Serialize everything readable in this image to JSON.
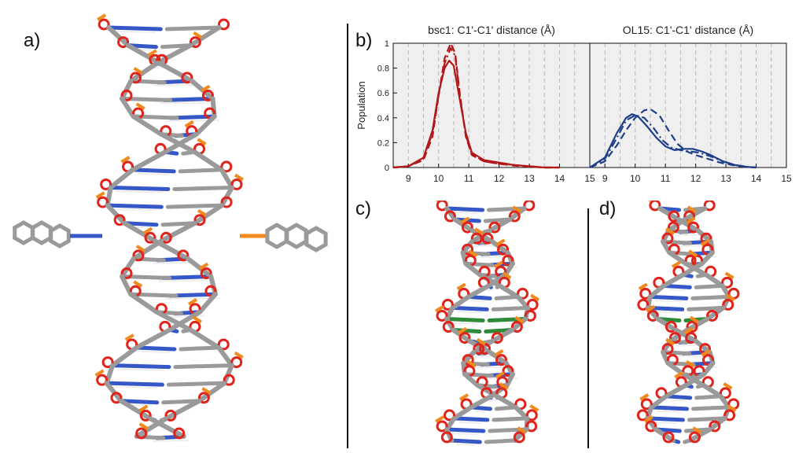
{
  "panels": {
    "a": {
      "label": "a)"
    },
    "b": {
      "label": "b)"
    },
    "c": {
      "label": "c)"
    },
    "d": {
      "label": "d)"
    }
  },
  "colors": {
    "backbone": "#9a9a9a",
    "oxygen": "#e0241b",
    "phosphorus": "#f08a1c",
    "nitrogen": "#3557c8",
    "hydrogen": "#eeeeee",
    "modified_base": "#2f8a3a",
    "bsc1_line": "#b2181b",
    "ol15_line": "#1f3e8a",
    "plot_bg": "#efefef"
  },
  "chart_data": [
    {
      "type": "line",
      "title": "bsc1: C1'-C1' distance (Å)",
      "xlabel": "",
      "ylabel": "Population",
      "xlim": [
        8.5,
        15
      ],
      "ylim": [
        0,
        1
      ],
      "xticks": [
        "9",
        "10",
        "11",
        "12",
        "13",
        "14",
        "15"
      ],
      "yticks": [
        "0",
        "0.2",
        "0.4",
        "0.6",
        "0.8",
        "1"
      ],
      "grid": "vertical dashed",
      "series": [
        {
          "style": "solid",
          "color": "#b2181b",
          "x": [
            8.5,
            9.0,
            9.5,
            9.8,
            10.0,
            10.2,
            10.35,
            10.5,
            10.7,
            10.9,
            11.1,
            11.5,
            12.0,
            12.5,
            13.0,
            13.5,
            14.0
          ],
          "y": [
            0.0,
            0.01,
            0.08,
            0.3,
            0.6,
            0.8,
            0.86,
            0.82,
            0.55,
            0.28,
            0.12,
            0.06,
            0.04,
            0.02,
            0.01,
            0.0,
            0.0
          ]
        },
        {
          "style": "dashed",
          "color": "#b2181b",
          "x": [
            8.5,
            9.0,
            9.5,
            9.8,
            10.0,
            10.2,
            10.4,
            10.55,
            10.7,
            10.9,
            11.1,
            11.5,
            12.0,
            12.5,
            13.0,
            13.5,
            14.0
          ],
          "y": [
            0.0,
            0.01,
            0.06,
            0.25,
            0.58,
            0.88,
            1.0,
            0.92,
            0.6,
            0.25,
            0.1,
            0.05,
            0.03,
            0.015,
            0.005,
            0.0,
            0.0
          ]
        },
        {
          "style": "dashdot",
          "color": "#b2181b",
          "x": [
            8.5,
            9.0,
            9.5,
            9.8,
            10.0,
            10.2,
            10.4,
            10.55,
            10.7,
            10.9,
            11.1,
            11.5,
            12.0,
            12.5,
            13.0,
            13.5,
            14.0
          ],
          "y": [
            0.0,
            0.01,
            0.07,
            0.28,
            0.58,
            0.84,
            0.96,
            0.9,
            0.58,
            0.26,
            0.11,
            0.05,
            0.03,
            0.02,
            0.01,
            0.0,
            0.0
          ]
        }
      ]
    },
    {
      "type": "line",
      "title": "OL15: C1'-C1' distance (Å)",
      "xlabel": "",
      "ylabel": "",
      "xlim": [
        8.5,
        15
      ],
      "ylim": [
        0,
        1
      ],
      "xticks": [
        "9",
        "10",
        "11",
        "12",
        "13",
        "14",
        "15"
      ],
      "yticks": [],
      "grid": "vertical dashed",
      "series": [
        {
          "style": "solid",
          "color": "#1f3e8a",
          "x": [
            8.5,
            9.0,
            9.4,
            9.7,
            9.9,
            10.1,
            10.4,
            10.7,
            11.0,
            11.3,
            11.6,
            11.9,
            12.2,
            12.5,
            12.9,
            13.3,
            13.7,
            14.0
          ],
          "y": [
            0.0,
            0.08,
            0.28,
            0.4,
            0.43,
            0.41,
            0.33,
            0.24,
            0.17,
            0.14,
            0.15,
            0.15,
            0.13,
            0.1,
            0.05,
            0.02,
            0.005,
            0.0
          ]
        },
        {
          "style": "dashed",
          "color": "#1f3e8a",
          "x": [
            8.5,
            9.0,
            9.4,
            9.7,
            10.0,
            10.3,
            10.5,
            10.8,
            11.1,
            11.4,
            11.7,
            12.0,
            12.4,
            12.8,
            13.2,
            13.6,
            14.0
          ],
          "y": [
            0.0,
            0.05,
            0.18,
            0.3,
            0.4,
            0.46,
            0.47,
            0.42,
            0.3,
            0.19,
            0.13,
            0.1,
            0.07,
            0.04,
            0.02,
            0.005,
            0.0
          ]
        },
        {
          "style": "dashdot",
          "color": "#1f3e8a",
          "x": [
            8.5,
            9.0,
            9.4,
            9.7,
            10.0,
            10.3,
            10.6,
            10.9,
            11.2,
            11.5,
            11.8,
            12.1,
            12.5,
            12.9,
            13.3,
            13.7,
            14.0
          ],
          "y": [
            0.0,
            0.07,
            0.24,
            0.38,
            0.42,
            0.4,
            0.32,
            0.22,
            0.16,
            0.14,
            0.13,
            0.12,
            0.09,
            0.05,
            0.02,
            0.005,
            0.0
          ]
        }
      ]
    }
  ]
}
